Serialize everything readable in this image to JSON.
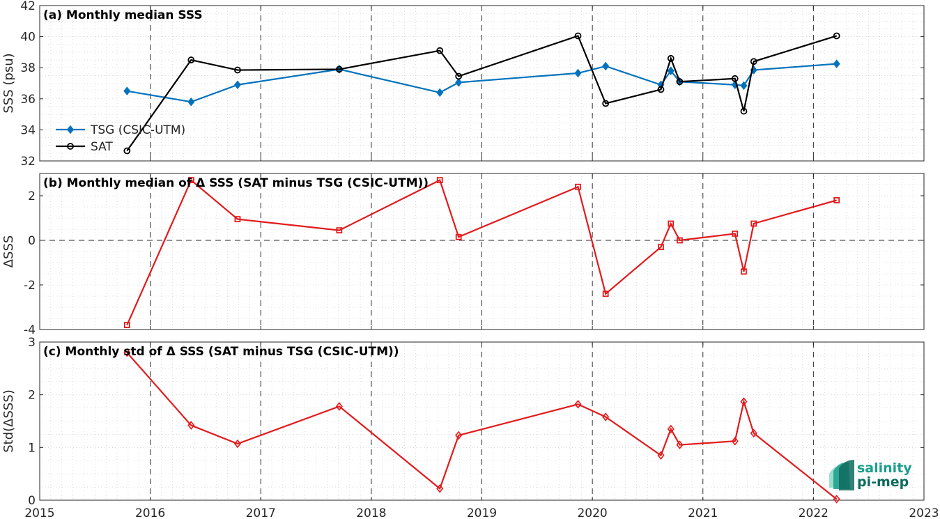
{
  "logo": {
    "line1": "salinity",
    "line2": "pi-mep",
    "colors": {
      "primary": "#1a9e8c",
      "secondary": "#0d6b5e",
      "light": "#7fd6c6"
    }
  },
  "chart_data": [
    {
      "type": "line",
      "title": "(a) Monthly median SSS",
      "xlabel": "",
      "ylabel": "SSS (psu)",
      "xlim": [
        2015,
        2023
      ],
      "ylim": [
        32,
        42
      ],
      "yticks": [
        32,
        34,
        36,
        38,
        40,
        42
      ],
      "grid": true,
      "legend": "bottom-left",
      "series": [
        {
          "name": "TSG (CSIC-UTM)",
          "color": "#0072bd",
          "marker": "diamond",
          "x": [
            2015.79,
            2016.37,
            2016.79,
            2017.71,
            2018.62,
            2018.79,
            2019.87,
            2020.12,
            2020.62,
            2020.71,
            2020.79,
            2021.29,
            2021.37,
            2021.46,
            2022.21
          ],
          "y": [
            36.5,
            35.8,
            36.9,
            37.9,
            36.4,
            37.05,
            37.65,
            38.1,
            36.9,
            37.8,
            37.1,
            36.9,
            36.85,
            37.85,
            38.25
          ]
        },
        {
          "name": "SAT",
          "color": "#000000",
          "marker": "circle",
          "x": [
            2015.79,
            2016.37,
            2016.79,
            2017.71,
            2018.62,
            2018.79,
            2019.87,
            2020.12,
            2020.62,
            2020.71,
            2020.79,
            2021.29,
            2021.37,
            2021.46,
            2022.21
          ],
          "y": [
            32.65,
            38.5,
            37.85,
            37.9,
            39.1,
            37.45,
            40.05,
            35.7,
            36.6,
            38.6,
            37.1,
            37.3,
            35.2,
            38.4,
            40.05
          ]
        }
      ]
    },
    {
      "type": "line",
      "title": "(b) Monthly median of Δ SSS (SAT minus TSG (CSIC-UTM))",
      "xlabel": "",
      "ylabel": "ΔSSS",
      "xlim": [
        2015,
        2023
      ],
      "ylim": [
        -4,
        3
      ],
      "yticks": [
        -4,
        -2,
        0,
        2
      ],
      "grid": true,
      "zero_line": true,
      "series": [
        {
          "color": "#e31a1c",
          "marker": "square",
          "x": [
            2015.79,
            2016.37,
            2016.79,
            2017.71,
            2018.62,
            2018.79,
            2019.87,
            2020.12,
            2020.62,
            2020.71,
            2020.79,
            2021.29,
            2021.37,
            2021.46,
            2022.21
          ],
          "y": [
            -3.8,
            2.7,
            0.95,
            0.45,
            2.7,
            0.15,
            2.4,
            -2.4,
            -0.3,
            0.75,
            0.0,
            0.3,
            -1.4,
            0.75,
            1.8
          ]
        }
      ]
    },
    {
      "type": "line",
      "title": "(c) Monthly std of Δ SSS (SAT minus TSG (CSIC-UTM))",
      "xlabel": "",
      "ylabel": "Std(ΔSSS)",
      "xlim": [
        2015,
        2023
      ],
      "ylim": [
        0,
        3
      ],
      "yticks": [
        0,
        1,
        2,
        3
      ],
      "xticks": [
        2015,
        2016,
        2017,
        2018,
        2019,
        2020,
        2021,
        2022,
        2023
      ],
      "grid": true,
      "series": [
        {
          "color": "#e31a1c",
          "marker": "diamond",
          "x": [
            2015.79,
            2016.37,
            2016.79,
            2017.71,
            2018.62,
            2018.79,
            2019.87,
            2020.12,
            2020.62,
            2020.71,
            2020.79,
            2021.29,
            2021.37,
            2021.46,
            2022.21
          ],
          "y": [
            2.8,
            1.42,
            1.07,
            1.78,
            0.22,
            1.23,
            1.82,
            1.58,
            0.85,
            1.35,
            1.05,
            1.12,
            1.87,
            1.27,
            0.02
          ]
        }
      ]
    }
  ]
}
